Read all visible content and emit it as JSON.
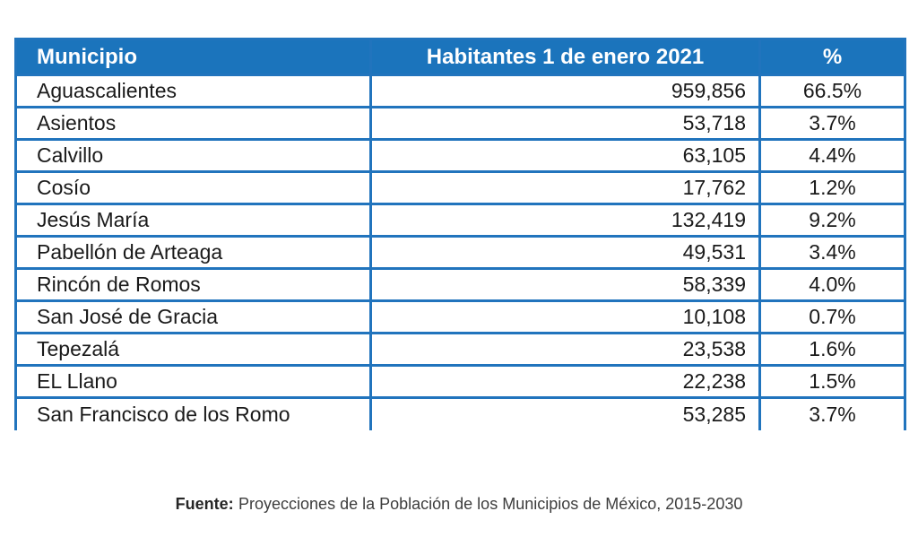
{
  "table": {
    "columns": [
      {
        "label": "Municipio",
        "align": "left"
      },
      {
        "label": "Habitantes 1 de enero 2021",
        "align": "center"
      },
      {
        "label": "%",
        "align": "center"
      }
    ],
    "rows": [
      {
        "municipio": "Aguascalientes",
        "habitantes": "959,856",
        "pct": "66.5%"
      },
      {
        "municipio": "Asientos",
        "habitantes": "53,718",
        "pct": "3.7%"
      },
      {
        "municipio": "Calvillo",
        "habitantes": "63,105",
        "pct": "4.4%"
      },
      {
        "municipio": "Cosío",
        "habitantes": "17,762",
        "pct": "1.2%"
      },
      {
        "municipio": "Jesús María",
        "habitantes": "132,419",
        "pct": "9.2%"
      },
      {
        "municipio": "Pabellón de Arteaga",
        "habitantes": "49,531",
        "pct": "3.4%"
      },
      {
        "municipio": "Rincón de Romos",
        "habitantes": "58,339",
        "pct": "4.0%"
      },
      {
        "municipio": "San José de Gracia",
        "habitantes": "10,108",
        "pct": "0.7%"
      },
      {
        "municipio": "Tepezalá",
        "habitantes": "23,538",
        "pct": "1.6%"
      },
      {
        "municipio": "EL Llano",
        "habitantes": "22,238",
        "pct": "1.5%"
      },
      {
        "municipio": "San Francisco de los Romo",
        "habitantes": "53,285",
        "pct": "3.7%"
      }
    ]
  },
  "footer": {
    "label": "Fuente:",
    "text": "Proyecciones de la Población de los Municipios de México, 2015-2030"
  },
  "colors": {
    "header_bg": "#1b74bc",
    "header_text": "#ffffff",
    "border": "#2174bd",
    "body_text": "#1a1a1a",
    "source_text": "#3d3d3d"
  },
  "chart_data": {
    "type": "table",
    "title": "Habitantes 1 de enero 2021",
    "columns": [
      "Municipio",
      "Habitantes 1 de enero 2021",
      "%"
    ],
    "categories": [
      "Aguascalientes",
      "Asientos",
      "Calvillo",
      "Cosío",
      "Jesús María",
      "Pabellón de Arteaga",
      "Rincón de Romos",
      "San José de Gracia",
      "Tepezalá",
      "EL Llano",
      "San Francisco de los Romo"
    ],
    "series": [
      {
        "name": "Habitantes 1 de enero 2021",
        "values": [
          959856,
          53718,
          63105,
          17762,
          132419,
          49531,
          58339,
          10108,
          23538,
          22238,
          53285
        ]
      },
      {
        "name": "%",
        "values": [
          66.5,
          3.7,
          4.4,
          1.2,
          9.2,
          3.4,
          4.0,
          0.7,
          1.6,
          1.5,
          3.7
        ]
      }
    ],
    "source": "Fuente: Proyecciones de la Población de los Municipios de México, 2015-2030"
  }
}
